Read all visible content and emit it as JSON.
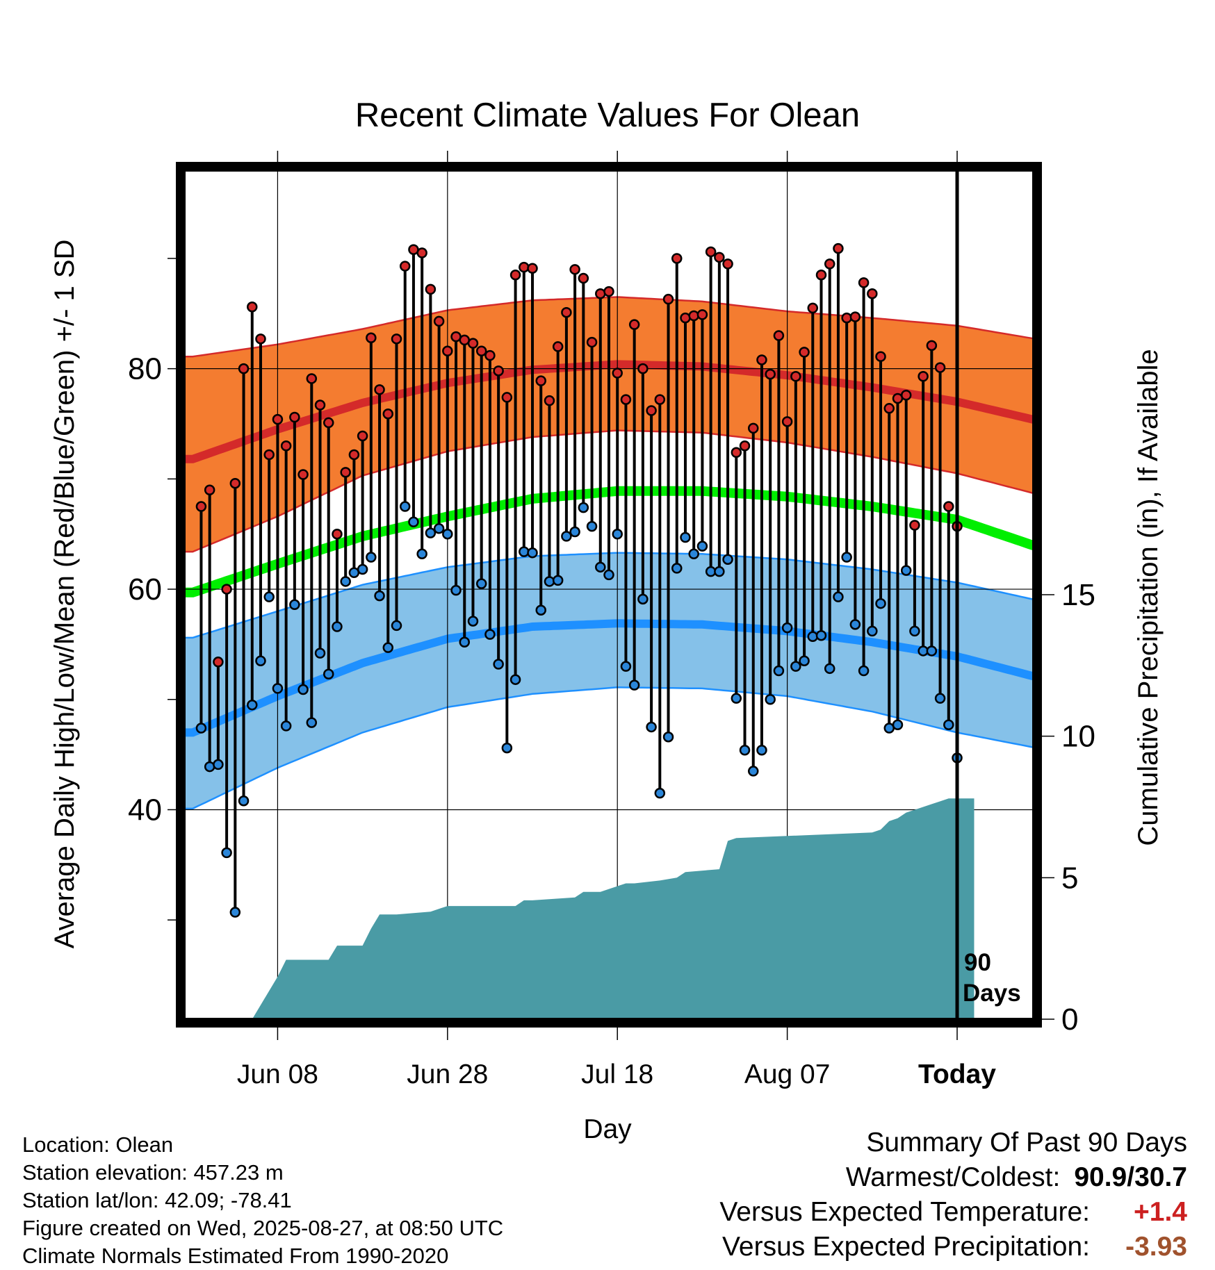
{
  "chart_data": {
    "type": "line",
    "title": "Recent Climate Values For Olean",
    "xlabel": "Day",
    "ylabel": "Average Daily High/Low/Mean (Red/Blue/Green) +/- 1 SD",
    "ylabel_right": "Cumulative Precipitation (in), If Available",
    "x_tick_labels": [
      "Jun 08",
      "Jun 28",
      "Jul 18",
      "Aug 07",
      "Today"
    ],
    "x_tick_days": [
      10,
      30,
      50,
      70,
      90
    ],
    "y_ticks": [
      40,
      60,
      80
    ],
    "y_minor_ticks": [
      30,
      50,
      70,
      90
    ],
    "ylim": [
      21,
      98
    ],
    "y2_ticks": [
      0,
      5,
      10,
      15
    ],
    "y2lim": [
      0,
      30
    ],
    "xlim": [
      -1,
      99
    ],
    "today_label_line1": "90",
    "today_label_line2": "Days",
    "grid": true,
    "colors": {
      "high_band": "#f47c30",
      "high_mean": "#d42a2a",
      "low_band": "#85c1e9",
      "low_mean": "#1e90ff",
      "mean": "#00ee00",
      "precip": "#4a9ba5",
      "high_dot": "#d42a2a",
      "low_dot": "#2b86d9"
    },
    "normals": {
      "days": [
        0,
        10,
        20,
        30,
        40,
        50,
        60,
        70,
        80,
        90,
        100
      ],
      "high_mean": [
        71.8,
        74.5,
        76.9,
        78.7,
        79.9,
        80.4,
        80.2,
        79.4,
        78.3,
        77.0,
        75.2
      ],
      "high_upper": [
        81.1,
        82.2,
        83.6,
        85.3,
        86.2,
        86.5,
        86.1,
        85.2,
        84.6,
        83.9,
        82.6
      ],
      "high_lower": [
        63.4,
        66.6,
        70.3,
        72.5,
        73.8,
        74.4,
        74.2,
        73.3,
        72.0,
        70.5,
        68.5
      ],
      "green_mean": [
        59.7,
        62.3,
        64.8,
        66.6,
        68.2,
        68.9,
        68.9,
        68.4,
        67.5,
        66.3,
        63.7
      ],
      "low_upper": [
        55.6,
        58.0,
        60.4,
        62.0,
        63.0,
        63.3,
        63.2,
        62.7,
        61.8,
        60.6,
        58.9
      ],
      "low_mean": [
        47.0,
        50.3,
        53.3,
        55.5,
        56.6,
        56.9,
        56.8,
        56.2,
        55.2,
        53.9,
        51.9
      ],
      "low_lower": [
        40.1,
        43.8,
        47.0,
        49.3,
        50.5,
        51.1,
        51.0,
        50.3,
        48.9,
        47.0,
        45.5
      ]
    },
    "series": [
      {
        "name": "High",
        "values": [
          67.5,
          69.0,
          53.4,
          60.0,
          69.6,
          80.0,
          85.6,
          82.7,
          72.2,
          75.4,
          73.0,
          75.6,
          70.4,
          79.1,
          76.7,
          75.1,
          65.0,
          70.6,
          72.2,
          73.9,
          82.8,
          78.1,
          75.9,
          82.7,
          89.3,
          90.8,
          90.5,
          87.2,
          84.3,
          81.6,
          82.9,
          82.6,
          82.3,
          81.6,
          81.2,
          79.8,
          77.4,
          88.5,
          89.2,
          89.1,
          78.9,
          77.1,
          82.0,
          85.1,
          89.0,
          88.2,
          82.4,
          86.8,
          87.0,
          79.6,
          77.2,
          84.0,
          80.0,
          76.2,
          77.2,
          86.3,
          90.0,
          84.6,
          84.8,
          84.9,
          90.6,
          90.1,
          89.5,
          72.4,
          73.0,
          74.6,
          80.8,
          79.5,
          83.0,
          75.2,
          79.3,
          81.5,
          85.5,
          88.5,
          89.5,
          90.9,
          84.6,
          84.7,
          87.8,
          86.8,
          81.1,
          76.4,
          77.3,
          77.6,
          65.8,
          79.3,
          82.1,
          80.1,
          67.5,
          65.7
        ],
        "lows": [
          47.4,
          43.9,
          44.1,
          36.1,
          30.7,
          40.8,
          49.5,
          53.5,
          59.3,
          51.0,
          47.6,
          58.6,
          50.9,
          47.9,
          54.2,
          52.3,
          56.6,
          60.7,
          61.5,
          61.8,
          62.9,
          59.4,
          54.7,
          56.7,
          67.5,
          66.1,
          63.2,
          65.1,
          65.5,
          65.0,
          59.9,
          55.2,
          57.1,
          60.5,
          55.9,
          53.2,
          45.6,
          51.8,
          63.4,
          63.3,
          58.1,
          60.7,
          60.8,
          64.8,
          65.2,
          67.4,
          65.7,
          62.0,
          61.3,
          65.0,
          53.0,
          51.3,
          59.1,
          47.5,
          41.5,
          46.6,
          61.9,
          64.7,
          63.2,
          63.9,
          61.6,
          61.6,
          62.7,
          50.1,
          45.4,
          43.5,
          45.4,
          50.0,
          52.6,
          56.5,
          53.0,
          53.5,
          55.7,
          55.8,
          52.8,
          59.3,
          62.9,
          56.8,
          52.6,
          56.2,
          58.7,
          47.4,
          47.7,
          61.7,
          56.2,
          54.4,
          54.4,
          50.1,
          47.7,
          44.7
        ]
      }
    ],
    "precip_cumulative": {
      "days": [
        7,
        8,
        10,
        11,
        12,
        16,
        17,
        20,
        21,
        22,
        23,
        24,
        28,
        29,
        30,
        38,
        39,
        40,
        45,
        46,
        48,
        49,
        51,
        52,
        55,
        57,
        58,
        62,
        63,
        64,
        80,
        81,
        82,
        83,
        84,
        85,
        86,
        87,
        88,
        89,
        92
      ],
      "values": [
        0.0,
        0.5,
        1.5,
        2.1,
        2.1,
        2.1,
        2.6,
        2.6,
        3.2,
        3.7,
        3.7,
        3.7,
        3.8,
        3.9,
        4.0,
        4.0,
        4.2,
        4.2,
        4.3,
        4.5,
        4.5,
        4.6,
        4.8,
        4.8,
        4.9,
        5.0,
        5.2,
        5.3,
        6.3,
        6.4,
        6.6,
        6.7,
        7.0,
        7.1,
        7.3,
        7.4,
        7.5,
        7.6,
        7.7,
        7.8,
        7.8
      ]
    }
  },
  "info": {
    "location": "Location: Olean",
    "elevation": "Station elevation: 457.23 m",
    "latlon": "Station lat/lon: 42.09; -78.41",
    "created": "Figure created on Wed, 2025-08-27, at 08:50 UTC",
    "normals": "Climate Normals Estimated From 1990-2020"
  },
  "summary": {
    "title": "Summary Of Past 90 Days",
    "warmest_label": "Warmest/Coldest:",
    "warmest_value": "90.9/30.7",
    "temp_label": "Versus Expected Temperature:",
    "temp_value": "+1.4",
    "precip_label": "Versus Expected Precipitation:",
    "precip_value": "-3.93"
  }
}
